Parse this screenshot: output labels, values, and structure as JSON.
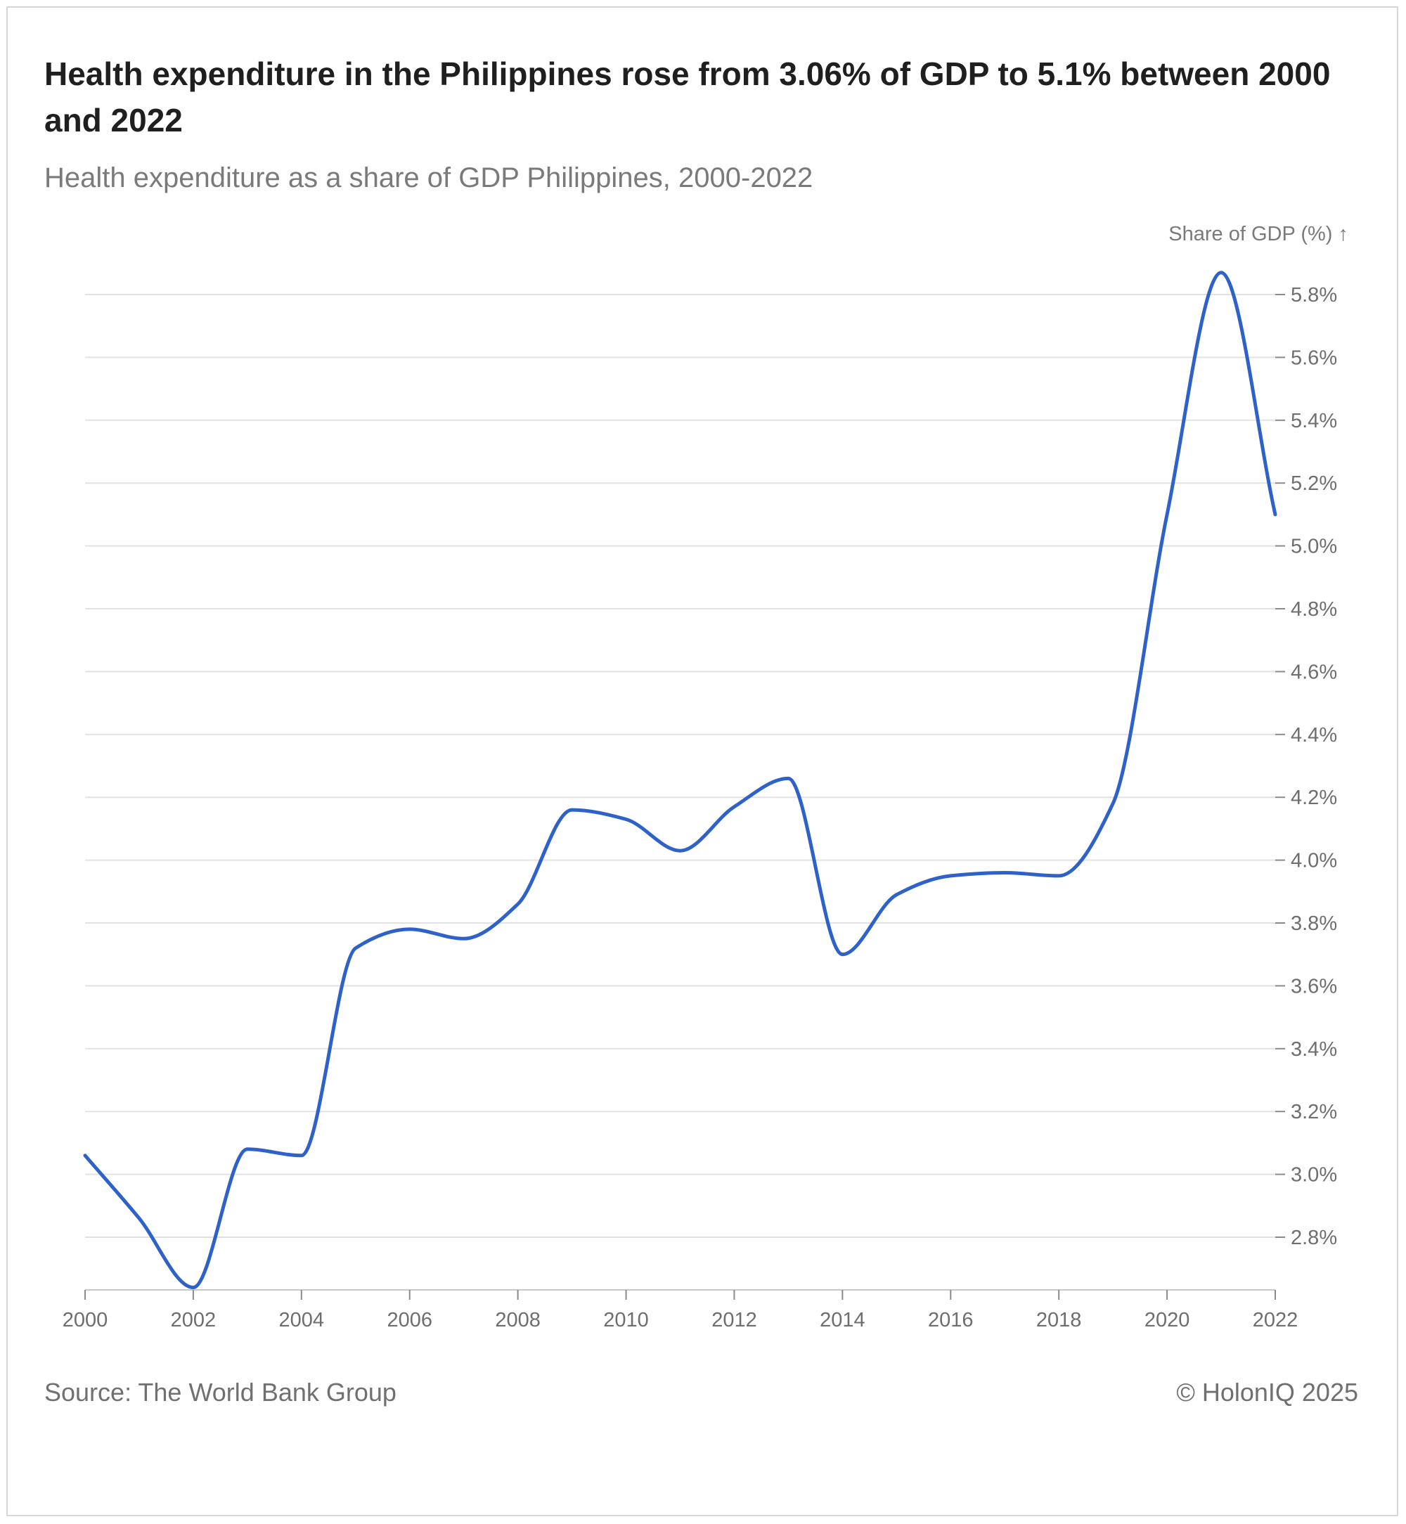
{
  "card": {
    "title": "Health expenditure in the Philippines rose from 3.06% of GDP to 5.1% between 2000 and 2022",
    "subtitle": "Health expenditure as a share of GDP Philippines, 2000-2022",
    "source": "Source: The World Bank Group",
    "copyright": "© HolonIQ 2025"
  },
  "chart_data": {
    "type": "line",
    "title": "Health expenditure in the Philippines rose from 3.06% of GDP to 5.1% between 2000 and 2022",
    "subtitle": "Health expenditure as a share of GDP Philippines, 2000-2022",
    "ylabel": "Share of GDP (%) ↑",
    "xlabel": "",
    "x": [
      2000,
      2001,
      2002,
      2003,
      2004,
      2005,
      2006,
      2007,
      2008,
      2009,
      2010,
      2011,
      2012,
      2013,
      2014,
      2015,
      2016,
      2017,
      2018,
      2019,
      2020,
      2021,
      2022
    ],
    "series": [
      {
        "name": "",
        "color": "#2f62c9",
        "values": [
          3.06,
          2.86,
          2.64,
          3.08,
          3.06,
          3.72,
          3.78,
          3.75,
          3.86,
          4.16,
          4.13,
          4.03,
          4.17,
          4.26,
          3.7,
          3.89,
          3.95,
          3.96,
          3.95,
          4.18,
          5.1,
          5.87,
          5.1
        ]
      }
    ],
    "ylim": [
      2.64,
      5.87
    ],
    "yticks": [
      2.8,
      3.0,
      3.2,
      3.4,
      3.6,
      3.8,
      4.0,
      4.2,
      4.4,
      4.6,
      4.8,
      5.0,
      5.2,
      5.4,
      5.6,
      5.8
    ],
    "ytick_labels": [
      "2.8%",
      "3.0%",
      "3.2%",
      "3.4%",
      "3.6%",
      "3.8%",
      "4.0%",
      "4.2%",
      "4.4%",
      "4.6%",
      "4.8%",
      "5.0%",
      "5.2%",
      "5.4%",
      "5.6%",
      "5.8%"
    ],
    "xticks": [
      2000,
      2002,
      2004,
      2006,
      2008,
      2010,
      2012,
      2014,
      2016,
      2018,
      2020,
      2022
    ],
    "xtick_labels": [
      "2000",
      "2002",
      "2004",
      "2006",
      "2008",
      "2010",
      "2012",
      "2014",
      "2016",
      "2018",
      "2020",
      "2022"
    ],
    "grid": true,
    "legend": "none",
    "y_axis_position": "right"
  }
}
